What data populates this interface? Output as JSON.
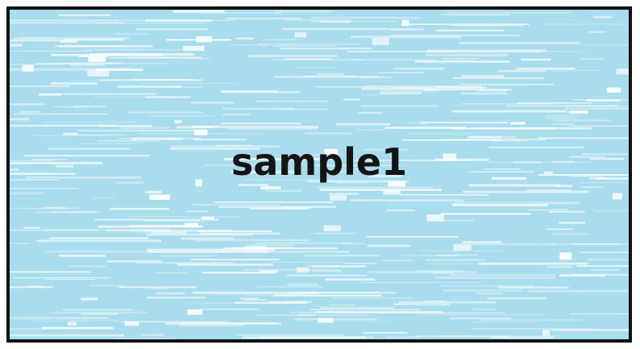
{
  "card": {
    "label": "sample1",
    "background_color": "#a9dcec",
    "streak_color": "#ffffff",
    "border_color": "#111111",
    "text_color": "#141414"
  }
}
